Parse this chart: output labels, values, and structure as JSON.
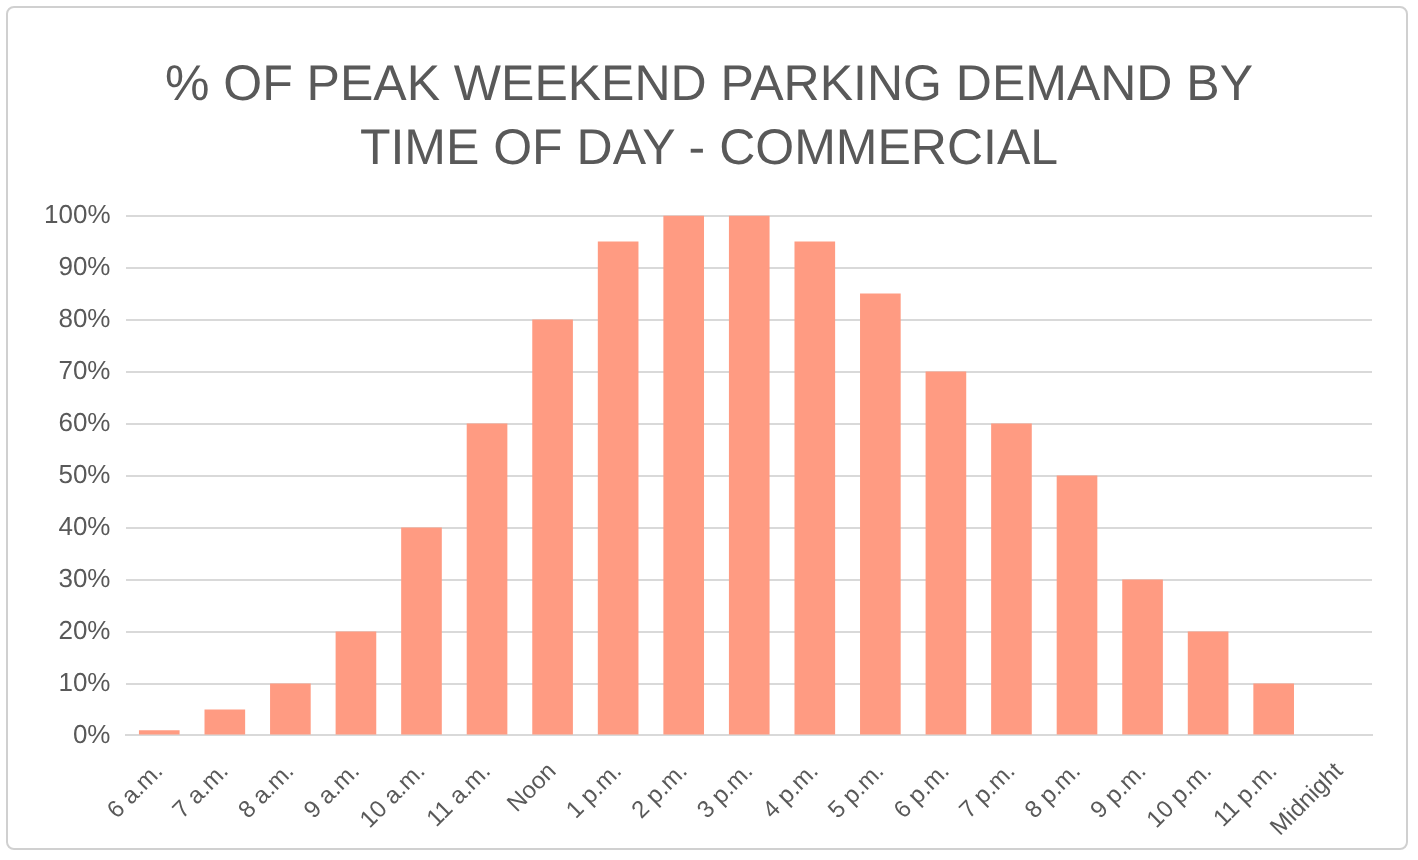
{
  "chart_data": {
    "type": "bar",
    "title": "% OF PEAK WEEKEND PARKING DEMAND BY TIME OF DAY -  COMMERCIAL",
    "categories": [
      "6 a.m.",
      "7 a.m.",
      "8 a.m.",
      "9 a.m.",
      "10 a.m.",
      "11 a.m.",
      "Noon",
      "1 p.m.",
      "2 p.m.",
      "3 p.m.",
      "4 p.m.",
      "5 p.m.",
      "6 p.m.",
      "7 p.m.",
      "8 p.m.",
      "9 p.m.",
      "10 p.m.",
      "11 p.m.",
      "Midnight"
    ],
    "values": [
      1,
      5,
      10,
      20,
      40,
      60,
      80,
      95,
      100,
      100,
      95,
      85,
      70,
      60,
      50,
      30,
      20,
      10,
      0
    ],
    "color": "#ff9b82",
    "ylim": [
      0,
      100
    ],
    "yticks": [
      {
        "value": 0,
        "label": "0%"
      },
      {
        "value": 10,
        "label": "10%"
      },
      {
        "value": 20,
        "label": "20%"
      },
      {
        "value": 30,
        "label": "30%"
      },
      {
        "value": 40,
        "label": "40%"
      },
      {
        "value": 50,
        "label": "50%"
      },
      {
        "value": 60,
        "label": "60%"
      },
      {
        "value": 70,
        "label": "70%"
      },
      {
        "value": 80,
        "label": "80%"
      },
      {
        "value": 90,
        "label": "90%"
      },
      {
        "value": 100,
        "label": "100%"
      }
    ],
    "grid": "y",
    "legend": false
  }
}
